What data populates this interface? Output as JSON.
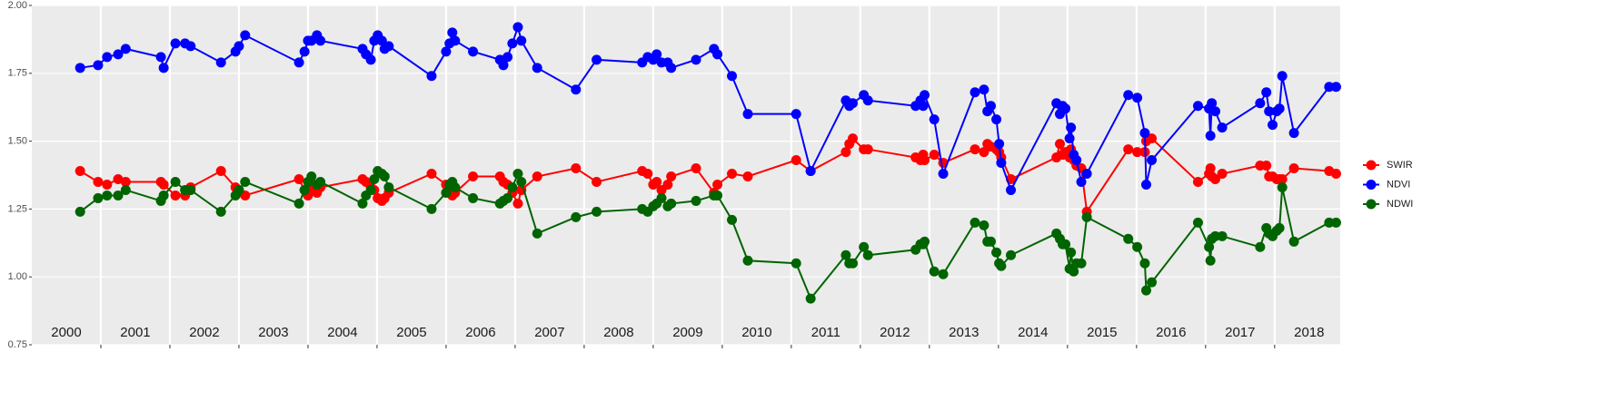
{
  "chart_data": {
    "type": "line",
    "x": [
      2000.7,
      2000.96,
      2001.09,
      2001.25,
      2001.36,
      2001.87,
      2001.91,
      2002.08,
      2002.22,
      2002.3,
      2002.74,
      2002.95,
      2003.0,
      2003.09,
      2003.87,
      2003.95,
      2004.0,
      2004.05,
      2004.13,
      2004.18,
      2004.79,
      2004.84,
      2004.91,
      2004.96,
      2005.01,
      2005.07,
      2005.11,
      2005.17,
      2005.79,
      2006.0,
      2006.05,
      2006.09,
      2006.13,
      2006.39,
      2006.78,
      2006.83,
      2006.89,
      2006.96,
      2007.04,
      2007.09,
      2007.32,
      2007.88,
      2008.18,
      2008.84,
      2008.92,
      2009.0,
      2009.05,
      2009.12,
      2009.21,
      2009.26,
      2009.62,
      2009.88,
      2009.93,
      2010.14,
      2010.37,
      2011.07,
      2011.28,
      2011.79,
      2011.84,
      2011.89,
      2012.05,
      2012.11,
      2012.8,
      2012.87,
      2012.91,
      2012.93,
      2013.07,
      2013.2,
      2013.66,
      2013.79,
      2013.84,
      2013.89,
      2013.97,
      2014.01,
      2014.04,
      2014.18,
      2014.84,
      2014.89,
      2014.93,
      2014.97,
      2015.03,
      2015.05,
      2015.09,
      2015.13,
      2015.2,
      2015.28,
      2015.88,
      2016.01,
      2016.12,
      2016.14,
      2016.22,
      2016.89,
      2017.05,
      2017.07,
      2017.09,
      2017.14,
      2017.24,
      2017.79,
      2017.88,
      2017.92,
      2017.97,
      2018.03,
      2018.07,
      2018.11,
      2018.28,
      2018.79,
      2018.89
    ],
    "series": [
      {
        "name": "SWIR",
        "color": "#ff0000",
        "values": [
          1.39,
          1.35,
          1.34,
          1.36,
          1.35,
          1.35,
          1.34,
          1.3,
          1.3,
          1.33,
          1.39,
          1.33,
          1.32,
          1.3,
          1.36,
          1.32,
          1.3,
          1.32,
          1.31,
          1.33,
          1.36,
          1.35,
          1.33,
          1.32,
          1.29,
          1.28,
          1.29,
          1.31,
          1.38,
          1.34,
          1.32,
          1.3,
          1.31,
          1.37,
          1.37,
          1.35,
          1.34,
          1.31,
          1.27,
          1.32,
          1.37,
          1.4,
          1.35,
          1.39,
          1.38,
          1.34,
          1.35,
          1.32,
          1.34,
          1.37,
          1.4,
          1.31,
          1.34,
          1.38,
          1.37,
          1.43,
          1.39,
          1.46,
          1.49,
          1.51,
          1.47,
          1.47,
          1.44,
          1.43,
          1.45,
          1.43,
          1.45,
          1.42,
          1.47,
          1.46,
          1.49,
          1.48,
          1.47,
          1.46,
          1.44,
          1.36,
          1.44,
          1.49,
          1.45,
          1.46,
          1.44,
          1.47,
          1.43,
          1.41,
          1.4,
          1.24,
          1.47,
          1.46,
          1.46,
          1.5,
          1.51,
          1.35,
          1.38,
          1.4,
          1.37,
          1.36,
          1.38,
          1.41,
          1.41,
          1.37,
          1.37,
          1.36,
          1.36,
          1.36,
          1.4,
          1.39,
          1.38
        ]
      },
      {
        "name": "NDVI",
        "color": "#0000ff",
        "values": [
          1.77,
          1.78,
          1.81,
          1.82,
          1.84,
          1.81,
          1.77,
          1.86,
          1.86,
          1.85,
          1.79,
          1.83,
          1.85,
          1.89,
          1.79,
          1.83,
          1.87,
          1.87,
          1.89,
          1.87,
          1.84,
          1.82,
          1.8,
          1.87,
          1.89,
          1.87,
          1.84,
          1.85,
          1.74,
          1.83,
          1.86,
          1.9,
          1.87,
          1.83,
          1.8,
          1.78,
          1.81,
          1.86,
          1.92,
          1.87,
          1.77,
          1.69,
          1.8,
          1.79,
          1.81,
          1.8,
          1.82,
          1.79,
          1.79,
          1.77,
          1.8,
          1.84,
          1.82,
          1.74,
          1.6,
          1.6,
          1.39,
          1.65,
          1.63,
          1.64,
          1.67,
          1.65,
          1.63,
          1.65,
          1.63,
          1.67,
          1.58,
          1.38,
          1.68,
          1.69,
          1.61,
          1.63,
          1.58,
          1.49,
          1.42,
          1.32,
          1.64,
          1.6,
          1.63,
          1.62,
          1.51,
          1.55,
          1.45,
          1.43,
          1.35,
          1.38,
          1.67,
          1.66,
          1.53,
          1.34,
          1.43,
          1.63,
          1.62,
          1.52,
          1.64,
          1.61,
          1.55,
          1.64,
          1.68,
          1.61,
          1.56,
          1.61,
          1.62,
          1.74,
          1.53,
          1.7,
          1.7
        ]
      },
      {
        "name": "NDWI",
        "color": "#006400",
        "values": [
          1.24,
          1.29,
          1.3,
          1.3,
          1.32,
          1.28,
          1.3,
          1.35,
          1.32,
          1.32,
          1.24,
          1.3,
          1.32,
          1.35,
          1.27,
          1.32,
          1.35,
          1.37,
          1.34,
          1.35,
          1.27,
          1.3,
          1.32,
          1.36,
          1.39,
          1.38,
          1.37,
          1.33,
          1.25,
          1.31,
          1.34,
          1.35,
          1.33,
          1.29,
          1.27,
          1.28,
          1.29,
          1.33,
          1.38,
          1.35,
          1.16,
          1.22,
          1.24,
          1.25,
          1.24,
          1.26,
          1.27,
          1.29,
          1.26,
          1.27,
          1.28,
          1.3,
          1.3,
          1.21,
          1.06,
          1.05,
          0.92,
          1.08,
          1.05,
          1.05,
          1.11,
          1.08,
          1.1,
          1.12,
          1.12,
          1.13,
          1.02,
          1.01,
          1.2,
          1.19,
          1.13,
          1.13,
          1.09,
          1.05,
          1.04,
          1.08,
          1.16,
          1.14,
          1.12,
          1.12,
          1.03,
          1.09,
          1.02,
          1.05,
          1.05,
          1.22,
          1.14,
          1.11,
          1.05,
          0.95,
          0.98,
          1.2,
          1.11,
          1.06,
          1.14,
          1.15,
          1.15,
          1.11,
          1.18,
          1.16,
          1.15,
          1.17,
          1.18,
          1.33,
          1.13,
          1.2,
          1.2
        ]
      }
    ],
    "xlim": [
      2000,
      2018.95
    ],
    "xticks": [
      2001,
      2002,
      2003,
      2004,
      2005,
      2006,
      2007,
      2008,
      2009,
      2010,
      2011,
      2012,
      2013,
      2014,
      2015,
      2016,
      2017,
      2018
    ],
    "x_labels": [
      {
        "value": 2000.5,
        "label": "2000"
      },
      {
        "value": 2001.5,
        "label": "2001"
      },
      {
        "value": 2002.5,
        "label": "2002"
      },
      {
        "value": 2003.5,
        "label": "2003"
      },
      {
        "value": 2004.5,
        "label": "2004"
      },
      {
        "value": 2005.5,
        "label": "2005"
      },
      {
        "value": 2006.5,
        "label": "2006"
      },
      {
        "value": 2007.5,
        "label": "2007"
      },
      {
        "value": 2008.5,
        "label": "2008"
      },
      {
        "value": 2009.5,
        "label": "2009"
      },
      {
        "value": 2010.5,
        "label": "2010"
      },
      {
        "value": 2011.5,
        "label": "2011"
      },
      {
        "value": 2012.5,
        "label": "2012"
      },
      {
        "value": 2013.5,
        "label": "2013"
      },
      {
        "value": 2014.5,
        "label": "2014"
      },
      {
        "value": 2015.5,
        "label": "2015"
      },
      {
        "value": 2016.5,
        "label": "2016"
      },
      {
        "value": 2017.5,
        "label": "2017"
      },
      {
        "value": 2018.5,
        "label": "2018"
      }
    ],
    "ylim": [
      0.75,
      2.0
    ],
    "yticks": [
      0.75,
      {
        "value": 1,
        "label": "1.00"
      },
      1.25,
      {
        "value": 1.5,
        "label": "1.50"
      },
      1.75,
      {
        "value": 2,
        "label": "2.00"
      }
    ],
    "grid": true,
    "legend": "right"
  }
}
